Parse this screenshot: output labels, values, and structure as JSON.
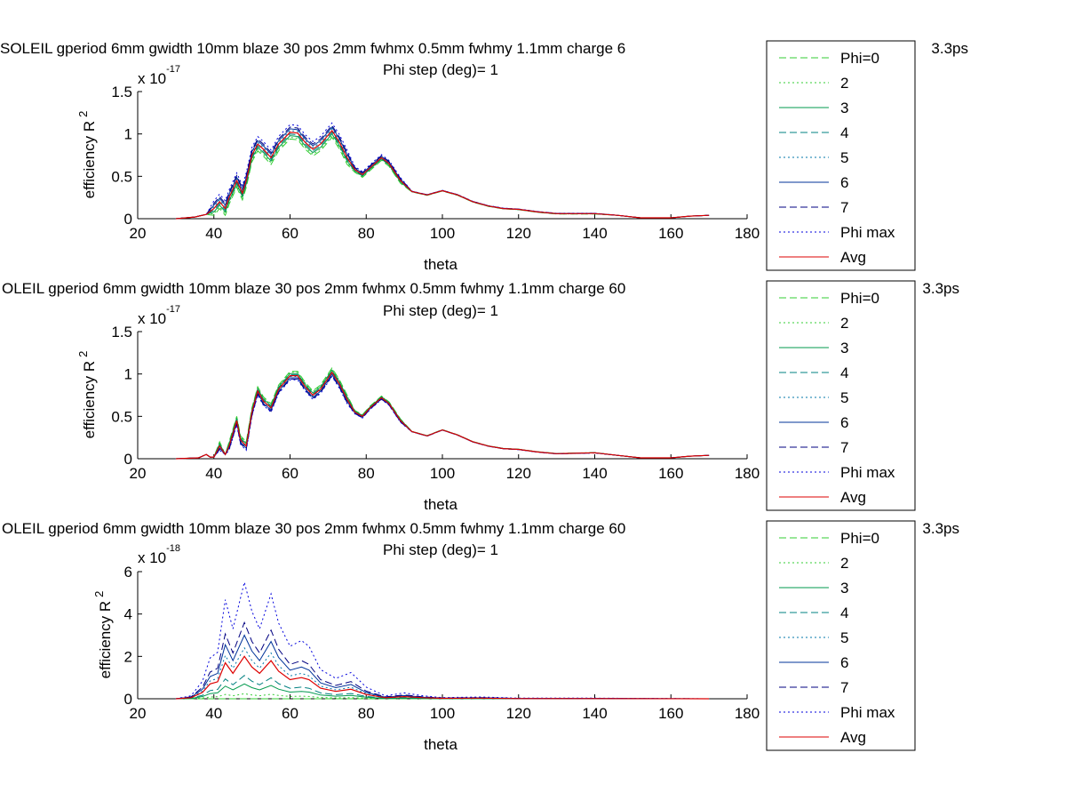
{
  "colors": {
    "phi0": "#33cc33",
    "s2": "#33cc33",
    "s3": "#00994d",
    "s4": "#008080",
    "s5": "#0077aa",
    "s6": "#003399",
    "s7": "#000080",
    "phimax": "#0000dd",
    "avg": "#dd0000"
  },
  "chart_data": [
    {
      "type": "line",
      "title": "SOLEIL gperiod 6mm gwidth 10mm blaze 30 pos 2mm fwhmx 0.5mm fwhmy 1.1mm charge 6",
      "title_tail": "3.3ps",
      "subtitle": "Phi step (deg)= 1",
      "xlabel": "theta",
      "ylabel": "efficiency R",
      "ylabel_sup": "2",
      "y_multiplier_base": "x 10",
      "y_multiplier_exp": "-17",
      "xlim": [
        20,
        180
      ],
      "ylim": [
        0,
        1.5
      ],
      "xticks": [
        "20",
        "40",
        "60",
        "80",
        "100",
        "120",
        "140",
        "160",
        "180"
      ],
      "yticks": [
        "0",
        "0.5",
        "1",
        "1.5"
      ],
      "legend": [
        "Phi=0",
        "2",
        "3",
        "4",
        "5",
        "6",
        "7",
        "Phi max",
        "Avg"
      ],
      "legend_position": "right, outside",
      "grid": false,
      "avg_points": [
        [
          30,
          0
        ],
        [
          35,
          0.02
        ],
        [
          38,
          0.05
        ],
        [
          40,
          0.12
        ],
        [
          41.5,
          0.2
        ],
        [
          43,
          0.12
        ],
        [
          44,
          0.25
        ],
        [
          46,
          0.45
        ],
        [
          47.5,
          0.3
        ],
        [
          48.5,
          0.45
        ],
        [
          50,
          0.75
        ],
        [
          51.5,
          0.88
        ],
        [
          53,
          0.82
        ],
        [
          55,
          0.72
        ],
        [
          57,
          0.88
        ],
        [
          60,
          1.02
        ],
        [
          62,
          1.01
        ],
        [
          64,
          0.9
        ],
        [
          66,
          0.82
        ],
        [
          68,
          0.88
        ],
        [
          71,
          1.04
        ],
        [
          73,
          0.9
        ],
        [
          75,
          0.72
        ],
        [
          77,
          0.58
        ],
        [
          79,
          0.52
        ],
        [
          81,
          0.6
        ],
        [
          84,
          0.72
        ],
        [
          86,
          0.65
        ],
        [
          89,
          0.45
        ],
        [
          92,
          0.32
        ],
        [
          96,
          0.28
        ],
        [
          100,
          0.33
        ],
        [
          104,
          0.28
        ],
        [
          108,
          0.2
        ],
        [
          112,
          0.15
        ],
        [
          116,
          0.12
        ],
        [
          120,
          0.11
        ],
        [
          125,
          0.08
        ],
        [
          130,
          0.06
        ],
        [
          140,
          0.06
        ],
        [
          146,
          0.04
        ],
        [
          152,
          0.01
        ],
        [
          160,
          0.01
        ],
        [
          165,
          0.03
        ],
        [
          170,
          0.04
        ]
      ],
      "series_spread": [
        -0.08,
        -0.06,
        -0.04,
        -0.02,
        0.02,
        0.04,
        0.06,
        0.09
      ]
    },
    {
      "type": "line",
      "title": "OLEIL gperiod 6mm gwidth 10mm blaze 30 pos 2mm fwhmx 0.5mm fwhmy 1.1mm charge 60",
      "title_tail": "3.3ps",
      "subtitle": "Phi step (deg)= 1",
      "xlabel": "theta",
      "ylabel": "efficiency R",
      "ylabel_sup": "2",
      "y_multiplier_base": "x 10",
      "y_multiplier_exp": "-17",
      "xlim": [
        20,
        180
      ],
      "ylim": [
        0,
        1.5
      ],
      "xticks": [
        "20",
        "40",
        "60",
        "80",
        "100",
        "120",
        "140",
        "160",
        "180"
      ],
      "yticks": [
        "0",
        "0.5",
        "1",
        "1.5"
      ],
      "legend": [
        "Phi=0",
        "2",
        "3",
        "4",
        "5",
        "6",
        "7",
        "Phi max",
        "Avg"
      ],
      "legend_position": "right, outside",
      "grid": false,
      "avg_points": [
        [
          30,
          0
        ],
        [
          36,
          0.01
        ],
        [
          38,
          0.05
        ],
        [
          39,
          0.02
        ],
        [
          40,
          0.02
        ],
        [
          41.5,
          0.15
        ],
        [
          43,
          0.05
        ],
        [
          44,
          0.15
        ],
        [
          46,
          0.45
        ],
        [
          47,
          0.22
        ],
        [
          48.5,
          0.15
        ],
        [
          50,
          0.55
        ],
        [
          51.5,
          0.8
        ],
        [
          53,
          0.68
        ],
        [
          55,
          0.6
        ],
        [
          57,
          0.82
        ],
        [
          60,
          0.98
        ],
        [
          62,
          0.98
        ],
        [
          64,
          0.85
        ],
        [
          66,
          0.75
        ],
        [
          68,
          0.82
        ],
        [
          71,
          1.02
        ],
        [
          73,
          0.88
        ],
        [
          75,
          0.7
        ],
        [
          77,
          0.55
        ],
        [
          79,
          0.5
        ],
        [
          81,
          0.6
        ],
        [
          84,
          0.72
        ],
        [
          86,
          0.65
        ],
        [
          89,
          0.45
        ],
        [
          92,
          0.32
        ],
        [
          96,
          0.27
        ],
        [
          100,
          0.34
        ],
        [
          104,
          0.28
        ],
        [
          108,
          0.2
        ],
        [
          112,
          0.15
        ],
        [
          116,
          0.12
        ],
        [
          120,
          0.11
        ],
        [
          125,
          0.08
        ],
        [
          130,
          0.06
        ],
        [
          140,
          0.07
        ],
        [
          146,
          0.04
        ],
        [
          152,
          0.01
        ],
        [
          160,
          0.01
        ],
        [
          165,
          0.03
        ],
        [
          170,
          0.04
        ]
      ],
      "series_spread": [
        0.05,
        0.04,
        0.025,
        0.01,
        -0.01,
        -0.025,
        -0.04,
        -0.05
      ]
    },
    {
      "type": "line",
      "title": "OLEIL gperiod 6mm gwidth 10mm blaze 30 pos 2mm fwhmx 0.5mm fwhmy 1.1mm charge 60",
      "title_tail": "3.3ps",
      "subtitle": "Phi step (deg)= 1",
      "xlabel": "theta",
      "ylabel": "efficiency R",
      "ylabel_sup": "2",
      "y_multiplier_base": "x 10",
      "y_multiplier_exp": "-18",
      "xlim": [
        20,
        180
      ],
      "ylim": [
        0,
        6
      ],
      "xticks": [
        "20",
        "40",
        "60",
        "80",
        "100",
        "120",
        "140",
        "160",
        "180"
      ],
      "yticks": [
        "0",
        "2",
        "4",
        "6"
      ],
      "legend": [
        "Phi=0",
        "2",
        "3",
        "4",
        "5",
        "6",
        "7",
        "Phi max",
        "Avg"
      ],
      "legend_position": "right, outside",
      "grid": false,
      "avg_points": [
        [
          30,
          0
        ],
        [
          34,
          0.05
        ],
        [
          37,
          0.3
        ],
        [
          39,
          0.7
        ],
        [
          41,
          0.8
        ],
        [
          43,
          1.7
        ],
        [
          45,
          1.2
        ],
        [
          48,
          2.0
        ],
        [
          50,
          1.5
        ],
        [
          52,
          1.2
        ],
        [
          55,
          1.8
        ],
        [
          57,
          1.3
        ],
        [
          60,
          0.9
        ],
        [
          63,
          1.0
        ],
        [
          65,
          0.9
        ],
        [
          68,
          0.5
        ],
        [
          72,
          0.35
        ],
        [
          76,
          0.45
        ],
        [
          80,
          0.2
        ],
        [
          85,
          0.05
        ],
        [
          90,
          0.1
        ],
        [
          95,
          0.05
        ],
        [
          100,
          0.02
        ],
        [
          110,
          0.03
        ],
        [
          120,
          0.01
        ],
        [
          140,
          0.01
        ],
        [
          170,
          0.0
        ]
      ],
      "series_factors": [
        0.0,
        0.12,
        0.35,
        0.55,
        1.2,
        1.5,
        1.8,
        2.75
      ]
    }
  ]
}
